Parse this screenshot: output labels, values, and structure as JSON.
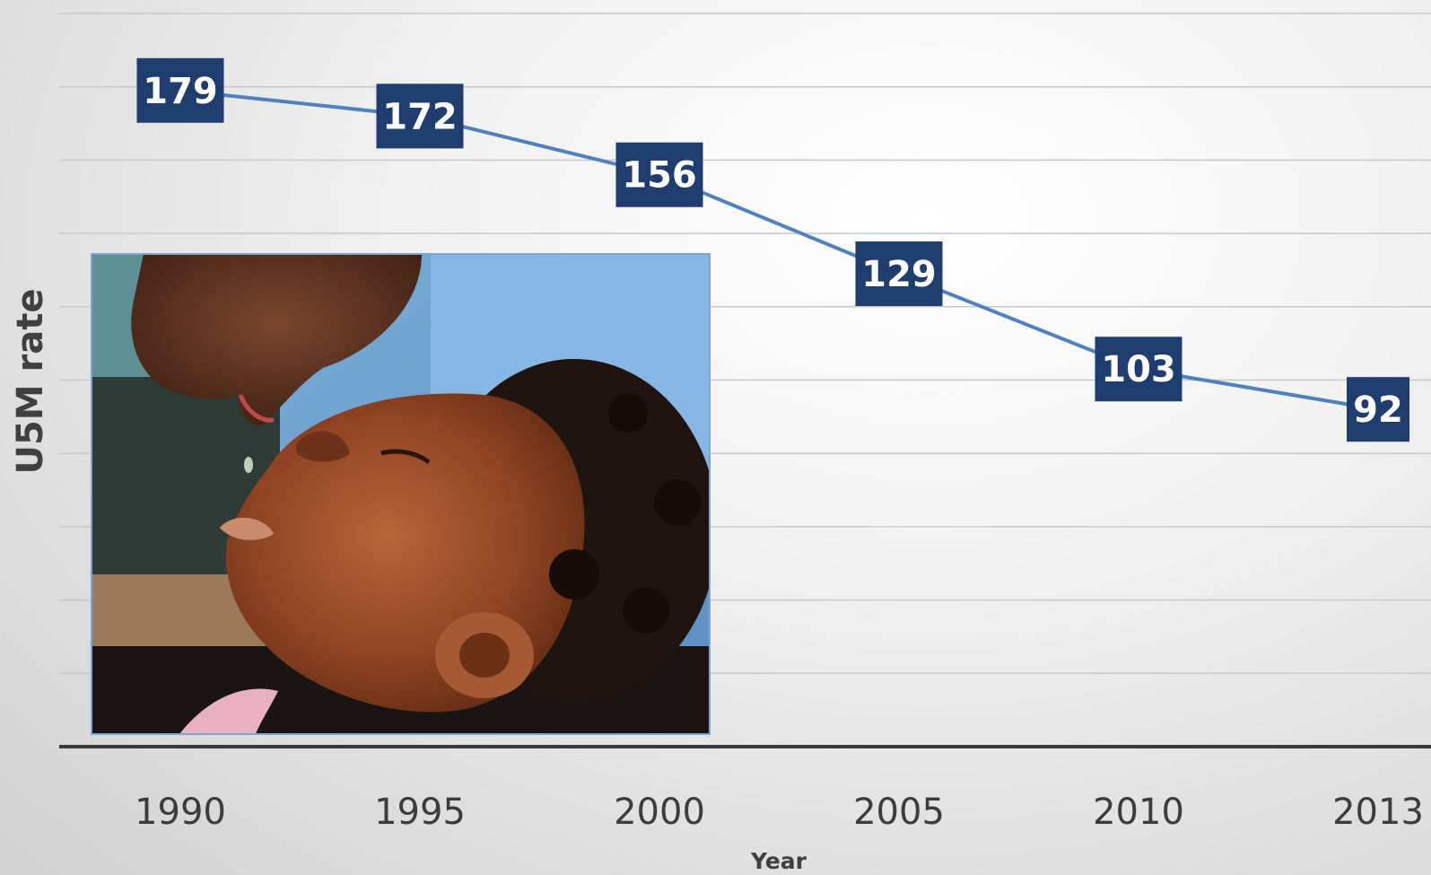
{
  "chart_data": {
    "type": "line",
    "title": "",
    "xlabel": "Year",
    "ylabel": "U5M rate",
    "categories": [
      "1990",
      "1995",
      "2000",
      "2005",
      "2010",
      "2013"
    ],
    "series": [
      {
        "values": [
          179,
          172,
          156,
          129,
          103,
          92
        ],
        "color": "#4f81bd"
      }
    ],
    "ylim": [
      0,
      200
    ],
    "grid": true,
    "legend": "none",
    "data_label_color": "#1f3d6e",
    "line_color": "#4f81bd",
    "baseline_color": "#3a3a3a",
    "gridline_color": "#c8c8c8"
  },
  "photo": {
    "description_icon": "child-receiving-oral-vaccine-photo"
  }
}
